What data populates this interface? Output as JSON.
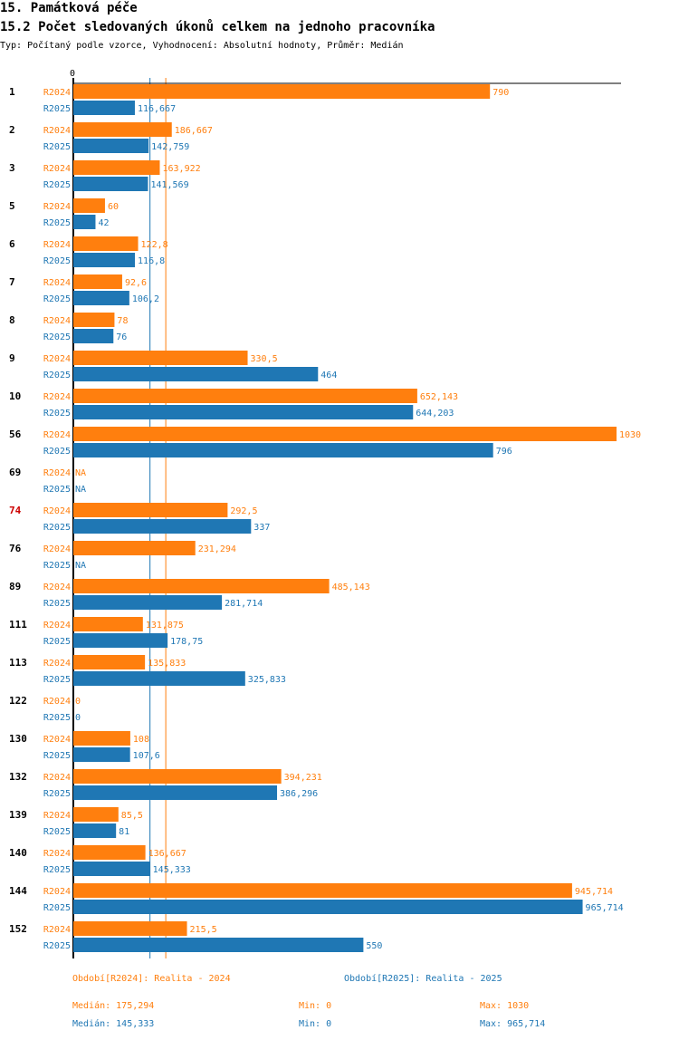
{
  "header": {
    "title": "15. Památková péče",
    "subtitle": "15.2 Počet sledovaných úkonů celkem na jednoho pracovníka",
    "meta": "Typ: Počítaný podle vzorce, Vyhodnocení: Absolutní hodnoty, Průměr: Medián"
  },
  "colors": {
    "r2024": "#ff7f0e",
    "r2025": "#1f77b4",
    "highlight": "#cc0000"
  },
  "chart_data": {
    "type": "bar",
    "orientation": "horizontal",
    "axis_zero_label": "0",
    "xlim": [
      0,
      1030
    ],
    "series": [
      {
        "name": "R2024",
        "label": "Období[R2024]: Realita - 2024"
      },
      {
        "name": "R2025",
        "label": "Období[R2025]: Realita - 2025"
      }
    ],
    "categories": [
      {
        "id": "1",
        "highlight": false,
        "r2024": 790,
        "r2025": 116.667,
        "r2024_label": "790",
        "r2025_label": "116,667"
      },
      {
        "id": "2",
        "highlight": false,
        "r2024": 186.667,
        "r2025": 142.759,
        "r2024_label": "186,667",
        "r2025_label": "142,759"
      },
      {
        "id": "3",
        "highlight": false,
        "r2024": 163.922,
        "r2025": 141.569,
        "r2024_label": "163,922",
        "r2025_label": "141,569"
      },
      {
        "id": "5",
        "highlight": false,
        "r2024": 60,
        "r2025": 42,
        "r2024_label": "60",
        "r2025_label": "42"
      },
      {
        "id": "6",
        "highlight": false,
        "r2024": 122.8,
        "r2025": 116.8,
        "r2024_label": "122,8",
        "r2025_label": "116,8"
      },
      {
        "id": "7",
        "highlight": false,
        "r2024": 92.6,
        "r2025": 106.2,
        "r2024_label": "92,6",
        "r2025_label": "106,2"
      },
      {
        "id": "8",
        "highlight": false,
        "r2024": 78,
        "r2025": 76,
        "r2024_label": "78",
        "r2025_label": "76"
      },
      {
        "id": "9",
        "highlight": false,
        "r2024": 330.5,
        "r2025": 464,
        "r2024_label": "330,5",
        "r2025_label": "464"
      },
      {
        "id": "10",
        "highlight": false,
        "r2024": 652.143,
        "r2025": 644.203,
        "r2024_label": "652,143",
        "r2025_label": "644,203"
      },
      {
        "id": "56",
        "highlight": false,
        "r2024": 1030,
        "r2025": 796,
        "r2024_label": "1030",
        "r2025_label": "796"
      },
      {
        "id": "69",
        "highlight": false,
        "r2024": null,
        "r2025": null,
        "r2024_label": "NA",
        "r2025_label": "NA"
      },
      {
        "id": "74",
        "highlight": true,
        "r2024": 292.5,
        "r2025": 337,
        "r2024_label": "292,5",
        "r2025_label": "337"
      },
      {
        "id": "76",
        "highlight": false,
        "r2024": 231.294,
        "r2025": null,
        "r2024_label": "231,294",
        "r2025_label": "NA"
      },
      {
        "id": "89",
        "highlight": false,
        "r2024": 485.143,
        "r2025": 281.714,
        "r2024_label": "485,143",
        "r2025_label": "281,714"
      },
      {
        "id": "111",
        "highlight": false,
        "r2024": 131.875,
        "r2025": 178.75,
        "r2024_label": "131,875",
        "r2025_label": "178,75"
      },
      {
        "id": "113",
        "highlight": false,
        "r2024": 135.833,
        "r2025": 325.833,
        "r2024_label": "135,833",
        "r2025_label": "325,833"
      },
      {
        "id": "122",
        "highlight": false,
        "r2024": 0,
        "r2025": 0,
        "r2024_label": "0",
        "r2025_label": "0"
      },
      {
        "id": "130",
        "highlight": false,
        "r2024": 108,
        "r2025": 107.6,
        "r2024_label": "108",
        "r2025_label": "107,6"
      },
      {
        "id": "132",
        "highlight": false,
        "r2024": 394.231,
        "r2025": 386.296,
        "r2024_label": "394,231",
        "r2025_label": "386,296"
      },
      {
        "id": "139",
        "highlight": false,
        "r2024": 85.5,
        "r2025": 81,
        "r2024_label": "85,5",
        "r2025_label": "81"
      },
      {
        "id": "140",
        "highlight": false,
        "r2024": 136.667,
        "r2025": 145.333,
        "r2024_label": "136,667",
        "r2025_label": "145,333"
      },
      {
        "id": "144",
        "highlight": false,
        "r2024": 945.714,
        "r2025": 965.714,
        "r2024_label": "945,714",
        "r2025_label": "965,714"
      },
      {
        "id": "152",
        "highlight": false,
        "r2024": 215.5,
        "r2025": 550,
        "r2024_label": "215,5",
        "r2025_label": "550"
      }
    ],
    "reference_lines": {
      "median_r2024": 175.294,
      "median_r2025": 145.333
    }
  },
  "footer": {
    "r2024": {
      "legend": "Období[R2024]: Realita - 2024",
      "median": "Medián: 175,294",
      "min": "Min: 0",
      "max": "Max: 1030"
    },
    "r2025": {
      "legend": "Období[R2025]: Realita - 2025",
      "median": "Medián: 145,333",
      "min": "Min: 0",
      "max": "Max: 965,714"
    }
  }
}
